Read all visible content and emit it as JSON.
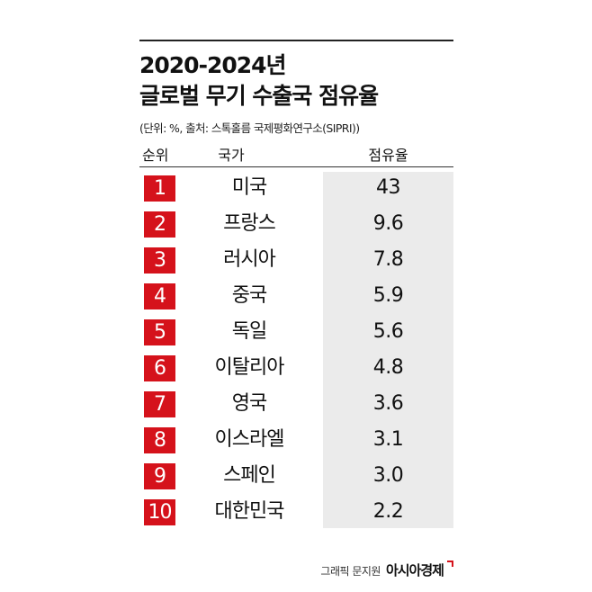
{
  "header": {
    "title_line1": "2020-2024년",
    "title_line2": "글로벌 무기 수출국 점유율",
    "subtitle": "(단위: %, 출처: 스톡홀름 국제평화연구소(SIPRI))"
  },
  "table_header": {
    "rank": "순위",
    "country": "국가",
    "share": "점유율"
  },
  "colors": {
    "rank_box": "#d5121b",
    "share_background": "#ebebeb",
    "brand_accent": "#d5121b"
  },
  "chart_data": {
    "type": "table",
    "columns": [
      "순위",
      "국가",
      "점유율"
    ],
    "rows": [
      {
        "rank": "1",
        "country": "미국",
        "share": "43"
      },
      {
        "rank": "2",
        "country": "프랑스",
        "share": "9.6"
      },
      {
        "rank": "3",
        "country": "러시아",
        "share": "7.8"
      },
      {
        "rank": "4",
        "country": "중국",
        "share": "5.9"
      },
      {
        "rank": "5",
        "country": "독일",
        "share": "5.6"
      },
      {
        "rank": "6",
        "country": "이탈리아",
        "share": "4.8"
      },
      {
        "rank": "7",
        "country": "영국",
        "share": "3.6"
      },
      {
        "rank": "8",
        "country": "이스라엘",
        "share": "3.1"
      },
      {
        "rank": "9",
        "country": "스페인",
        "share": "3.0"
      },
      {
        "rank": "10",
        "country": "대한민국",
        "share": "2.2"
      }
    ]
  },
  "footer": {
    "credit": "그래픽 문지원",
    "brand": "아시아경제",
    "brand_icon": "corner-mark-icon"
  }
}
